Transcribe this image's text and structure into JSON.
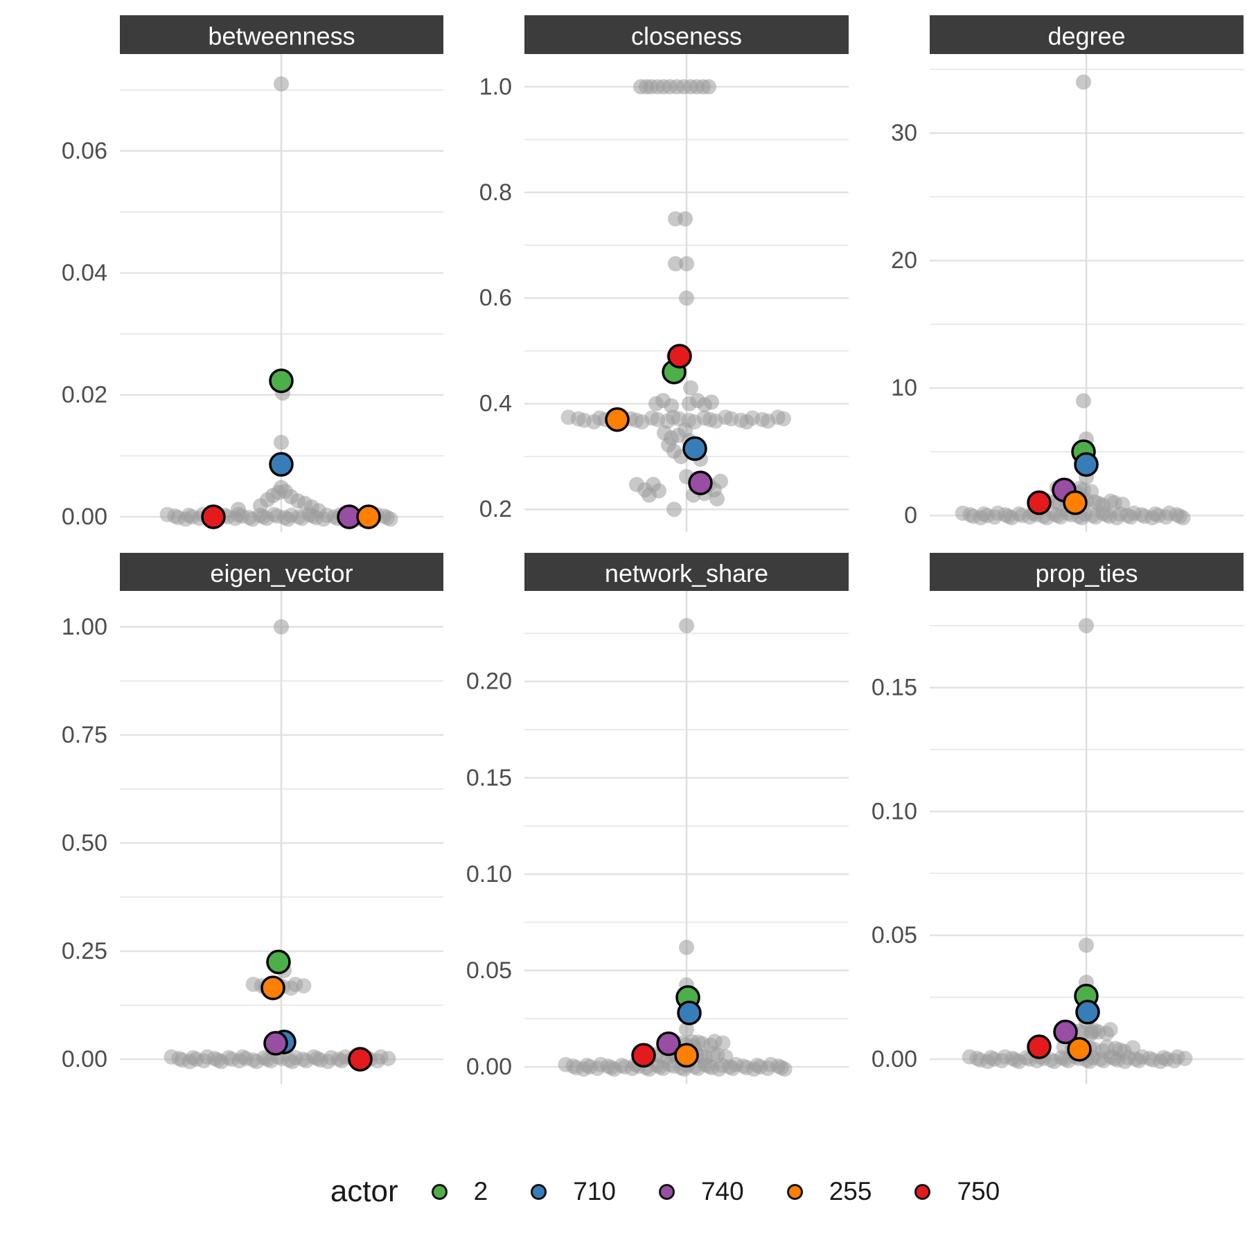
{
  "chart_data": {
    "type": "scatter",
    "description": "Faceted jitter/strip plots of simulated actor network metrics; gray points are all actors, colored points highlight five actors.",
    "colors": {
      "strip_background": "#3c3c3c",
      "strip_text": "#ffffff",
      "grid_major": "#e2e2e2",
      "grid_minor": "#eaeaea",
      "axis_line_x": "#dedede",
      "gray_point": "#9a9a9a",
      "axis_text": "#4d4d4d"
    },
    "legend": {
      "title": "actor",
      "entries": [
        {
          "label": "2",
          "color": "#4DAF4A"
        },
        {
          "label": "710",
          "color": "#377EB8"
        },
        {
          "label": "740",
          "color": "#984EA3"
        },
        {
          "label": "255",
          "color": "#FF7F00"
        },
        {
          "label": "750",
          "color": "#E41A1C"
        }
      ]
    },
    "actors": {
      "2": "#4DAF4A",
      "710": "#377EB8",
      "740": "#984EA3",
      "255": "#FF7F00",
      "750": "#E41A1C"
    },
    "facets": [
      {
        "title": "betweenness",
        "row": 0,
        "col": 0,
        "ymin": -0.0025,
        "ymax": 0.0759,
        "ticks": [
          {
            "label": "0.06",
            "v": 0.06
          },
          {
            "label": "0.04",
            "v": 0.04
          },
          {
            "label": "0.02",
            "v": 0.02
          },
          {
            "label": "0.00",
            "v": 0.0
          }
        ],
        "minor": [
          0.01,
          0.03,
          0.05,
          0.07
        ],
        "gray_singles": [
          [
            0,
            0.071
          ],
          [
            0.01,
            0.0203
          ],
          [
            0,
            0.0122
          ],
          [
            0,
            0.0048
          ],
          [
            -0.02,
            0.004
          ],
          [
            0.03,
            0.0042
          ],
          [
            -0.06,
            0.0035
          ],
          [
            0.07,
            0.0033
          ],
          [
            -0.1,
            0.0028
          ],
          [
            0.12,
            0.0026
          ],
          [
            0.17,
            0.0022
          ],
          [
            -0.15,
            0.0018
          ],
          [
            0.22,
            0.0016
          ],
          [
            -0.31,
            0.0012
          ],
          [
            0.27,
            0.001
          ]
        ],
        "bands": [
          {
            "y": 0,
            "from": -0.81,
            "to": 0.8,
            "n": 46
          }
        ],
        "highlights": [
          {
            "actor": "2",
            "x": 0,
            "y": 0.0223
          },
          {
            "actor": "710",
            "x": 0,
            "y": 0.0086
          },
          {
            "actor": "740",
            "x": 0.49,
            "y": 0
          },
          {
            "actor": "255",
            "x": 0.63,
            "y": 0
          },
          {
            "actor": "750",
            "x": -0.49,
            "y": 0
          }
        ]
      },
      {
        "title": "closeness",
        "row": 0,
        "col": 1,
        "ymin": 0.157,
        "ymax": 1.062,
        "ticks": [
          {
            "label": "1.0",
            "v": 1.0
          },
          {
            "label": "0.8",
            "v": 0.8
          },
          {
            "label": "0.6",
            "v": 0.6
          },
          {
            "label": "0.4",
            "v": 0.4
          },
          {
            "label": "0.2",
            "v": 0.2
          }
        ],
        "minor": [
          0.3,
          0.5,
          0.7,
          0.9
        ],
        "gray_singles": [
          [
            -0.33,
            1.0
          ],
          [
            -0.29,
            1.0
          ],
          [
            -0.255,
            1.0
          ],
          [
            -0.21,
            1.0
          ],
          [
            -0.165,
            1.0
          ],
          [
            -0.12,
            1.0
          ],
          [
            -0.07,
            1.0
          ],
          [
            -0.02,
            1.0
          ],
          [
            0.03,
            1.0
          ],
          [
            0.075,
            1.0
          ],
          [
            0.12,
            1.0
          ],
          [
            0.16,
            1.0
          ],
          [
            -0.08,
            0.75
          ],
          [
            -0.01,
            0.75
          ],
          [
            -0.08,
            0.665
          ],
          [
            0,
            0.665
          ],
          [
            0,
            0.6
          ],
          [
            -0.09,
            0.49
          ],
          [
            0.03,
            0.43
          ],
          [
            -0.22,
            0.4
          ],
          [
            -0.17,
            0.406
          ],
          [
            -0.11,
            0.396
          ],
          [
            0.02,
            0.4
          ],
          [
            0.08,
            0.406
          ],
          [
            0.13,
            0.398
          ],
          [
            0.18,
            0.403
          ],
          [
            -0.16,
            0.345
          ],
          [
            -0.11,
            0.335
          ],
          [
            -0.06,
            0.34
          ],
          [
            -0.01,
            0.35
          ],
          [
            -0.13,
            0.322
          ],
          [
            0.02,
            0.33
          ],
          [
            -0.09,
            0.31
          ],
          [
            0.05,
            0.315
          ],
          [
            -0.04,
            0.3
          ],
          [
            0.1,
            0.295
          ],
          [
            -0.36,
            0.247
          ],
          [
            -0.3,
            0.237
          ],
          [
            -0.24,
            0.247
          ],
          [
            -0.27,
            0.227
          ],
          [
            -0.2,
            0.235
          ],
          [
            0.16,
            0.247
          ],
          [
            0.2,
            0.237
          ],
          [
            0.245,
            0.253
          ],
          [
            0.13,
            0.23
          ],
          [
            0,
            0.262
          ],
          [
            0.05,
            0.227
          ],
          [
            0.22,
            0.22
          ],
          [
            -0.09,
            0.2
          ]
        ],
        "bands": [
          {
            "y": 0.37,
            "from": -0.84,
            "to": 0.7,
            "n": 30
          }
        ],
        "highlights": [
          {
            "actor": "2",
            "x": -0.09,
            "y": 0.46
          },
          {
            "actor": "710",
            "x": 0.06,
            "y": 0.315
          },
          {
            "actor": "740",
            "x": 0.1,
            "y": 0.25
          },
          {
            "actor": "255",
            "x": -0.5,
            "y": 0.37
          },
          {
            "actor": "750",
            "x": -0.05,
            "y": 0.49
          }
        ]
      },
      {
        "title": "degree",
        "row": 0,
        "col": 2,
        "ymin": -1.3,
        "ymax": 36.2,
        "ticks": [
          {
            "label": "30",
            "v": 30
          },
          {
            "label": "20",
            "v": 20
          },
          {
            "label": "10",
            "v": 10
          },
          {
            "label": "0",
            "v": 0
          }
        ],
        "minor": [
          5,
          15,
          25,
          35
        ],
        "gray_singles": [
          [
            -0.02,
            34
          ],
          [
            -0.02,
            9
          ],
          [
            0,
            6
          ],
          [
            0,
            3
          ]
        ],
        "bands": [
          {
            "y": 2,
            "from": -0.2,
            "to": 0.03,
            "n": 7
          },
          {
            "y": 1,
            "from": -0.27,
            "to": 0.25,
            "n": 14
          },
          {
            "y": 0,
            "from": -0.88,
            "to": 0.71,
            "n": 46
          }
        ],
        "highlights": [
          {
            "actor": "2",
            "x": -0.02,
            "y": 5
          },
          {
            "actor": "710",
            "x": 0,
            "y": 4
          },
          {
            "actor": "740",
            "x": -0.16,
            "y": 2
          },
          {
            "actor": "255",
            "x": -0.08,
            "y": 1
          },
          {
            "actor": "750",
            "x": -0.34,
            "y": 1
          }
        ]
      },
      {
        "title": "eigen_vector",
        "row": 1,
        "col": 0,
        "ymin": -0.0577,
        "ymax": 1.083,
        "ticks": [
          {
            "label": "1.00",
            "v": 1.0
          },
          {
            "label": "0.75",
            "v": 0.75
          },
          {
            "label": "0.50",
            "v": 0.5
          },
          {
            "label": "0.25",
            "v": 0.25
          },
          {
            "label": "0.00",
            "v": 0.0
          }
        ],
        "minor": [
          0.125,
          0.375,
          0.625,
          0.875
        ],
        "gray_singles": [
          [
            0,
            1.0
          ],
          [
            0.02,
            0.205
          ]
        ],
        "bands": [
          {
            "y": 0.168,
            "from": -0.19,
            "to": 0.15,
            "n": 9
          },
          {
            "y": 0,
            "from": -0.78,
            "to": 0.76,
            "n": 44
          }
        ],
        "highlights": [
          {
            "actor": "2",
            "x": -0.02,
            "y": 0.225
          },
          {
            "actor": "710",
            "x": 0.02,
            "y": 0.04
          },
          {
            "actor": "740",
            "x": -0.04,
            "y": 0.037
          },
          {
            "actor": "255",
            "x": -0.06,
            "y": 0.165
          },
          {
            "actor": "750",
            "x": 0.57,
            "y": 0
          }
        ]
      },
      {
        "title": "network_share",
        "row": 1,
        "col": 1,
        "ymin": -0.009,
        "ymax": 0.247,
        "ticks": [
          {
            "label": "0.20",
            "v": 0.2
          },
          {
            "label": "0.15",
            "v": 0.15
          },
          {
            "label": "0.10",
            "v": 0.1
          },
          {
            "label": "0.05",
            "v": 0.05
          },
          {
            "label": "0.00",
            "v": 0.0
          }
        ],
        "minor": [
          0.025,
          0.075,
          0.125,
          0.175,
          0.225
        ],
        "gray_singles": [
          [
            0,
            0.229
          ],
          [
            0,
            0.062
          ],
          [
            0,
            0.0425
          ],
          [
            0,
            0.0195
          ],
          [
            0.04,
            0.013
          ]
        ],
        "bands": [
          {
            "y": 0.012,
            "from": -0.08,
            "to": 0.25,
            "n": 9
          },
          {
            "y": 0.006,
            "from": -0.27,
            "to": 0.27,
            "n": 14
          },
          {
            "y": 0,
            "from": -0.86,
            "to": 0.72,
            "n": 46
          }
        ],
        "highlights": [
          {
            "actor": "2",
            "x": 0.01,
            "y": 0.036
          },
          {
            "actor": "710",
            "x": 0.02,
            "y": 0.028
          },
          {
            "actor": "740",
            "x": -0.13,
            "y": 0.012
          },
          {
            "actor": "255",
            "x": 0,
            "y": 0.006
          },
          {
            "actor": "750",
            "x": -0.31,
            "y": 0.006
          }
        ]
      },
      {
        "title": "prop_ties",
        "row": 1,
        "col": 2,
        "ymin": -0.0101,
        "ymax": 0.189,
        "ticks": [
          {
            "label": "0.15",
            "v": 0.15
          },
          {
            "label": "0.10",
            "v": 0.1
          },
          {
            "label": "0.05",
            "v": 0.05
          },
          {
            "label": "0.00",
            "v": 0.0
          }
        ],
        "minor": [
          0.025,
          0.075,
          0.125,
          0.175
        ],
        "gray_singles": [
          [
            0,
            0.175
          ],
          [
            0,
            0.046
          ],
          [
            0,
            0.031
          ],
          [
            0,
            0.015
          ],
          [
            0.04,
            0.011
          ]
        ],
        "bands": [
          {
            "y": 0.011,
            "from": -0.1,
            "to": 0.18,
            "n": 8
          },
          {
            "y": 0.004,
            "from": -0.15,
            "to": 0.33,
            "n": 12
          },
          {
            "y": 0,
            "from": -0.83,
            "to": 0.7,
            "n": 44
          }
        ],
        "highlights": [
          {
            "actor": "2",
            "x": 0,
            "y": 0.0255
          },
          {
            "actor": "710",
            "x": 0.01,
            "y": 0.019
          },
          {
            "actor": "740",
            "x": -0.15,
            "y": 0.011
          },
          {
            "actor": "255",
            "x": -0.05,
            "y": 0.004
          },
          {
            "actor": "750",
            "x": -0.34,
            "y": 0.005
          }
        ]
      }
    ]
  }
}
